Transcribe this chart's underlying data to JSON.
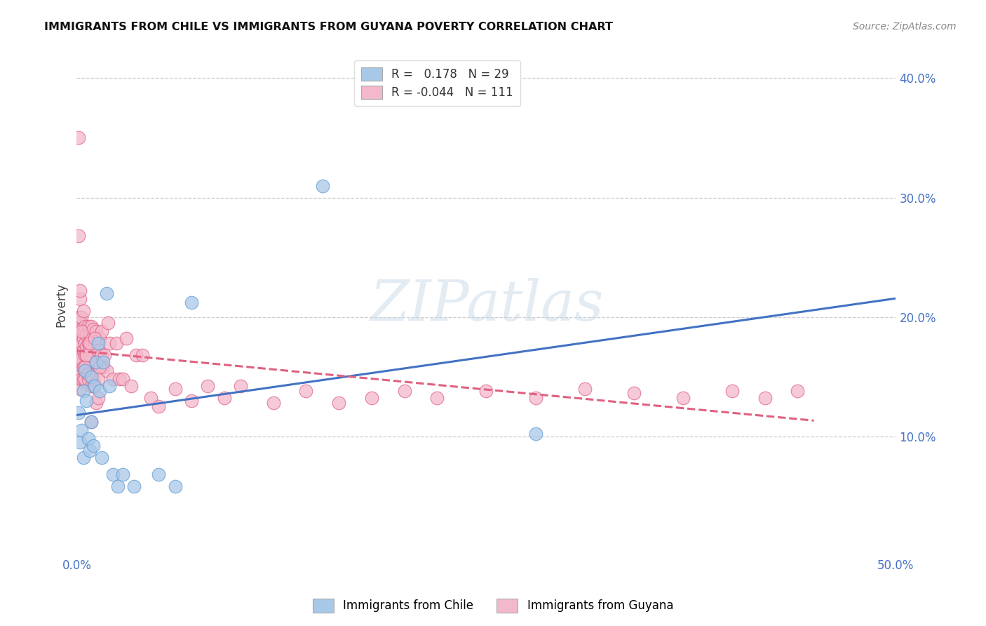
{
  "title": "IMMIGRANTS FROM CHILE VS IMMIGRANTS FROM GUYANA POVERTY CORRELATION CHART",
  "source": "Source: ZipAtlas.com",
  "tick_color": "#4472c4",
  "ylabel": "Poverty",
  "xlim": [
    0.0,
    0.5
  ],
  "ylim": [
    0.0,
    0.42
  ],
  "grid_color": "#cccccc",
  "background": "#ffffff",
  "chile_color": "#a8c8e8",
  "chile_edge": "#5b9bd5",
  "guyana_color": "#f4b8cc",
  "guyana_edge": "#e06080",
  "chile_line_color": "#4472c4",
  "guyana_line_color": "#e06080",
  "R_chile": 0.178,
  "N_chile": 29,
  "R_guyana": -0.044,
  "N_guyana": 111,
  "legend_box_chile": "#a8c8e8",
  "legend_box_guyana": "#f4b8cc",
  "chile_x": [
    0.001,
    0.002,
    0.003,
    0.004,
    0.004,
    0.005,
    0.006,
    0.007,
    0.008,
    0.009,
    0.009,
    0.01,
    0.011,
    0.012,
    0.013,
    0.014,
    0.015,
    0.016,
    0.018,
    0.02,
    0.022,
    0.025,
    0.028,
    0.035,
    0.05,
    0.06,
    0.07,
    0.15,
    0.28
  ],
  "chile_y": [
    0.12,
    0.095,
    0.105,
    0.138,
    0.082,
    0.155,
    0.13,
    0.098,
    0.088,
    0.15,
    0.112,
    0.092,
    0.142,
    0.162,
    0.178,
    0.138,
    0.082,
    0.162,
    0.22,
    0.142,
    0.068,
    0.058,
    0.068,
    0.058,
    0.068,
    0.058,
    0.212,
    0.31,
    0.102
  ],
  "guyana_x": [
    0.001,
    0.001,
    0.001,
    0.001,
    0.001,
    0.001,
    0.001,
    0.001,
    0.001,
    0.001,
    0.002,
    0.002,
    0.002,
    0.002,
    0.002,
    0.002,
    0.002,
    0.002,
    0.002,
    0.002,
    0.003,
    0.003,
    0.003,
    0.003,
    0.003,
    0.003,
    0.003,
    0.004,
    0.004,
    0.004,
    0.004,
    0.004,
    0.005,
    0.005,
    0.005,
    0.005,
    0.005,
    0.006,
    0.006,
    0.006,
    0.006,
    0.007,
    0.007,
    0.007,
    0.007,
    0.008,
    0.008,
    0.008,
    0.008,
    0.009,
    0.009,
    0.009,
    0.01,
    0.01,
    0.011,
    0.011,
    0.012,
    0.012,
    0.013,
    0.013,
    0.014,
    0.015,
    0.015,
    0.016,
    0.017,
    0.018,
    0.019,
    0.02,
    0.022,
    0.024,
    0.026,
    0.028,
    0.03,
    0.033,
    0.036,
    0.04,
    0.045,
    0.05,
    0.06,
    0.07,
    0.08,
    0.09,
    0.1,
    0.12,
    0.14,
    0.16,
    0.18,
    0.2,
    0.22,
    0.25,
    0.28,
    0.31,
    0.34,
    0.37,
    0.4,
    0.42,
    0.44,
    0.001,
    0.002,
    0.003,
    0.004,
    0.005,
    0.006,
    0.007,
    0.008,
    0.009,
    0.01,
    0.011,
    0.012,
    0.013,
    0.014
  ],
  "guyana_y": [
    0.35,
    0.195,
    0.165,
    0.15,
    0.175,
    0.145,
    0.19,
    0.2,
    0.16,
    0.18,
    0.155,
    0.14,
    0.185,
    0.175,
    0.2,
    0.16,
    0.215,
    0.17,
    0.185,
    0.195,
    0.148,
    0.178,
    0.162,
    0.148,
    0.19,
    0.165,
    0.2,
    0.188,
    0.158,
    0.148,
    0.172,
    0.182,
    0.192,
    0.168,
    0.178,
    0.148,
    0.188,
    0.168,
    0.185,
    0.155,
    0.175,
    0.158,
    0.178,
    0.192,
    0.148,
    0.168,
    0.185,
    0.155,
    0.175,
    0.142,
    0.172,
    0.192,
    0.148,
    0.19,
    0.158,
    0.178,
    0.188,
    0.162,
    0.148,
    0.172,
    0.182,
    0.168,
    0.188,
    0.158,
    0.168,
    0.155,
    0.195,
    0.178,
    0.148,
    0.178,
    0.148,
    0.148,
    0.182,
    0.142,
    0.168,
    0.168,
    0.132,
    0.125,
    0.14,
    0.13,
    0.142,
    0.132,
    0.142,
    0.128,
    0.138,
    0.128,
    0.132,
    0.138,
    0.132,
    0.138,
    0.132,
    0.14,
    0.136,
    0.132,
    0.138,
    0.132,
    0.138,
    0.268,
    0.222,
    0.188,
    0.205,
    0.158,
    0.168,
    0.152,
    0.178,
    0.112,
    0.142,
    0.182,
    0.128,
    0.132,
    0.158
  ]
}
